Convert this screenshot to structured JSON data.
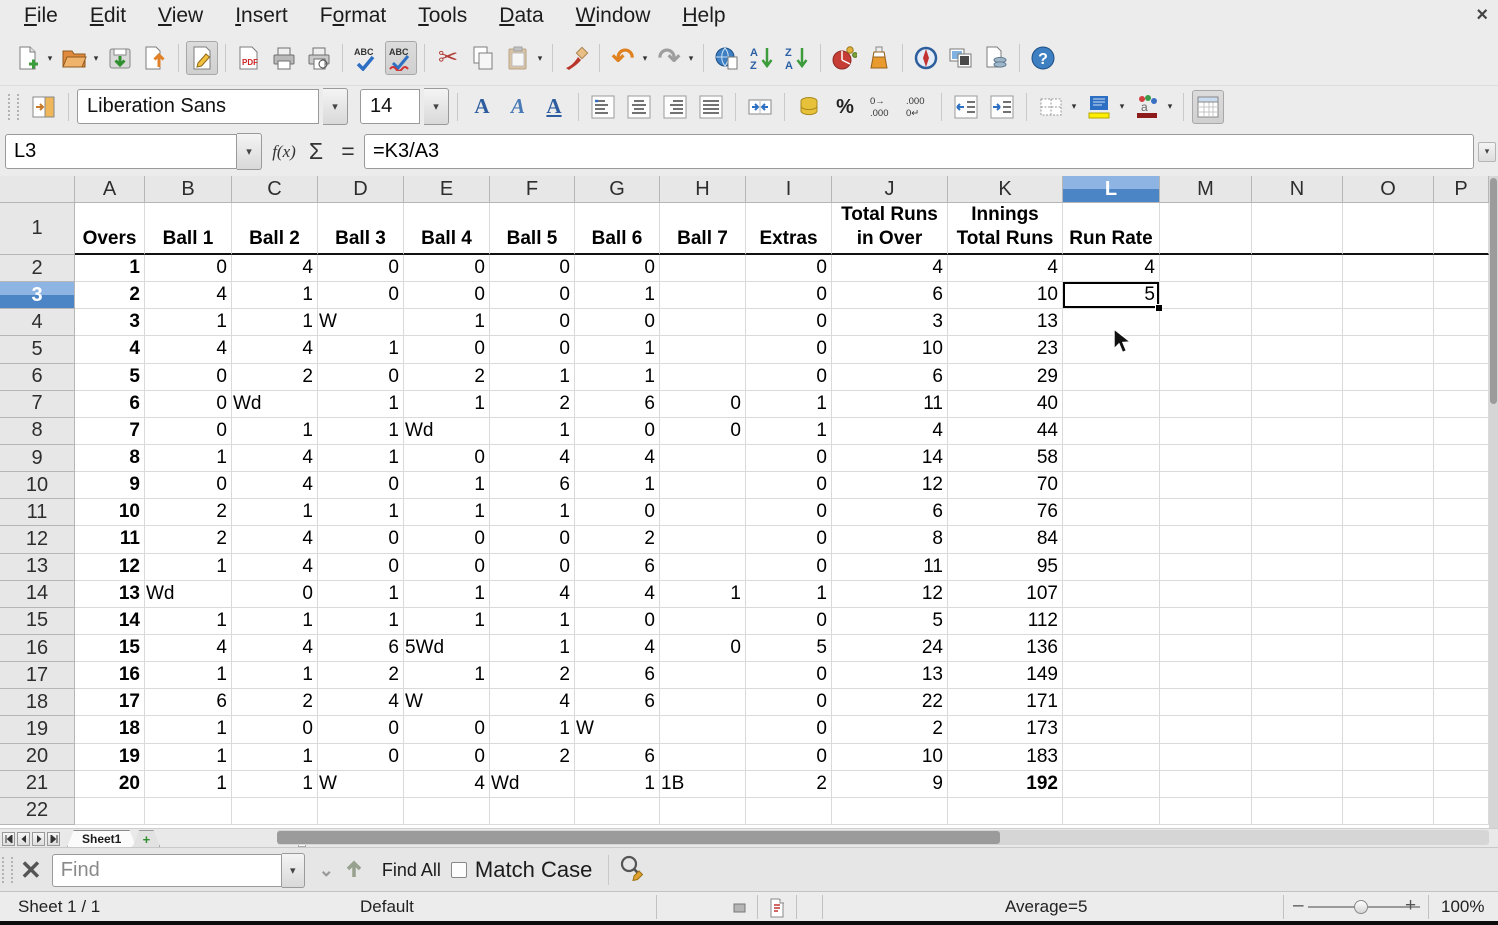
{
  "menu": {
    "items": [
      {
        "label": "File",
        "accel": 0
      },
      {
        "label": "Edit",
        "accel": 0
      },
      {
        "label": "View",
        "accel": 0
      },
      {
        "label": "Insert",
        "accel": 0
      },
      {
        "label": "Format",
        "accel": 1
      },
      {
        "label": "Tools",
        "accel": 0
      },
      {
        "label": "Data",
        "accel": 0
      },
      {
        "label": "Window",
        "accel": 0
      },
      {
        "label": "Help",
        "accel": 0
      }
    ],
    "close_glyph": "×"
  },
  "toolbar_main": {
    "icons": [
      "new-document",
      "open",
      "save",
      "export",
      "edit-file",
      "export-pdf",
      "print",
      "print-preview",
      "spelling",
      "auto-spellcheck",
      "cut",
      "copy",
      "paste",
      "clone-formatting",
      "undo",
      "redo",
      "hyperlink",
      "sort-ascending",
      "sort-descending",
      "insert-chart",
      "show-draw-functions",
      "navigator",
      "gallery",
      "data-sources",
      "help"
    ]
  },
  "toolbar_format": {
    "font_name": "Liberation Sans",
    "font_size": "14",
    "icons": [
      "sidebar",
      "bold",
      "italic",
      "underline",
      "align-left",
      "align-center",
      "align-right",
      "justified",
      "merge-cells",
      "currency",
      "percent",
      "add-decimal",
      "delete-decimal",
      "decrease-indent",
      "increase-indent",
      "borders",
      "background-color",
      "highlighting-color",
      "freeze-panes"
    ]
  },
  "formula_bar": {
    "cell_ref": "L3",
    "formula": "=K3/A3"
  },
  "sheet": {
    "columns": [
      "A",
      "B",
      "C",
      "D",
      "E",
      "F",
      "G",
      "H",
      "I",
      "J",
      "K",
      "L",
      "M",
      "N",
      "O",
      "P"
    ],
    "rows": [
      "1",
      "2",
      "3",
      "4",
      "5",
      "6",
      "7",
      "8",
      "9",
      "10",
      "11",
      "12",
      "13",
      "14",
      "15",
      "16",
      "17",
      "18",
      "19",
      "20",
      "21",
      "22"
    ],
    "selected_cell": "L3",
    "selected_column": "L",
    "selected_row": "3",
    "header_row": [
      "Overs",
      "Ball 1",
      "Ball 2",
      "Ball 3",
      "Ball 4",
      "Ball 5",
      "Ball 6",
      "Ball 7",
      "Extras",
      "Total Runs\nin Over",
      "Innings\nTotal Runs",
      "Run Rate"
    ],
    "data_rows": [
      [
        "1",
        "0",
        "4",
        "0",
        "0",
        "0",
        "0",
        "",
        "0",
        "4",
        "4",
        "4"
      ],
      [
        "2",
        "4",
        "1",
        "0",
        "0",
        "0",
        "1",
        "",
        "0",
        "6",
        "10",
        "5"
      ],
      [
        "3",
        "1",
        "1",
        "W",
        "1",
        "0",
        "0",
        "",
        "0",
        "3",
        "13",
        ""
      ],
      [
        "4",
        "4",
        "4",
        "1",
        "0",
        "0",
        "1",
        "",
        "0",
        "10",
        "23",
        ""
      ],
      [
        "5",
        "0",
        "2",
        "0",
        "2",
        "1",
        "1",
        "",
        "0",
        "6",
        "29",
        ""
      ],
      [
        "6",
        "0",
        "Wd",
        "1",
        "1",
        "2",
        "6",
        "0",
        "1",
        "11",
        "40",
        ""
      ],
      [
        "7",
        "0",
        "1",
        "1",
        "Wd",
        "1",
        "0",
        "0",
        "1",
        "4",
        "44",
        ""
      ],
      [
        "8",
        "1",
        "4",
        "1",
        "0",
        "4",
        "4",
        "",
        "0",
        "14",
        "58",
        ""
      ],
      [
        "9",
        "0",
        "4",
        "0",
        "1",
        "6",
        "1",
        "",
        "0",
        "12",
        "70",
        ""
      ],
      [
        "10",
        "2",
        "1",
        "1",
        "1",
        "1",
        "0",
        "",
        "0",
        "6",
        "76",
        ""
      ],
      [
        "11",
        "2",
        "4",
        "0",
        "0",
        "0",
        "2",
        "",
        "0",
        "8",
        "84",
        ""
      ],
      [
        "12",
        "1",
        "4",
        "0",
        "0",
        "0",
        "6",
        "",
        "0",
        "11",
        "95",
        ""
      ],
      [
        "13",
        "Wd",
        "0",
        "1",
        "1",
        "4",
        "4",
        "1",
        "1",
        "12",
        "107",
        ""
      ],
      [
        "14",
        "1",
        "1",
        "1",
        "1",
        "1",
        "0",
        "",
        "0",
        "5",
        "112",
        ""
      ],
      [
        "15",
        "4",
        "4",
        "6",
        "5Wd",
        "1",
        "4",
        "0",
        "5",
        "24",
        "136",
        ""
      ],
      [
        "16",
        "1",
        "1",
        "2",
        "1",
        "2",
        "6",
        "",
        "0",
        "13",
        "149",
        ""
      ],
      [
        "17",
        "6",
        "2",
        "4",
        "W",
        "4",
        "6",
        "",
        "0",
        "22",
        "171",
        ""
      ],
      [
        "18",
        "1",
        "0",
        "0",
        "0",
        "1",
        "W",
        "",
        "0",
        "2",
        "173",
        ""
      ],
      [
        "19",
        "1",
        "1",
        "0",
        "0",
        "2",
        "6",
        "",
        "0",
        "10",
        "183",
        ""
      ],
      [
        "20",
        "1",
        "1",
        "W",
        "4",
        "Wd",
        "1",
        "1B",
        "2",
        "9",
        "192",
        ""
      ]
    ],
    "bold_cells": [
      "K21"
    ]
  },
  "tab_bar": {
    "sheet_name": "Sheet1",
    "add_sheet_glyph": "+"
  },
  "find_bar": {
    "placeholder": "Find",
    "find_all": "Find All",
    "match_case": "Match Case",
    "match_case_checked": false
  },
  "status_bar": {
    "sheet_info": "Sheet 1 / 1",
    "page_style": "Default",
    "selection_summary": "Average=5",
    "zoom_out_glyph": "–",
    "zoom_in_glyph": "+",
    "zoom_level": "100%"
  },
  "colors": {
    "selection_header_top": "#8db4e2",
    "selection_header_bottom": "#4b85c5",
    "selection_border": "#000000",
    "grid_line": "#dadada",
    "header_bg": "#e7e7e7",
    "thick_border": "#111111"
  }
}
